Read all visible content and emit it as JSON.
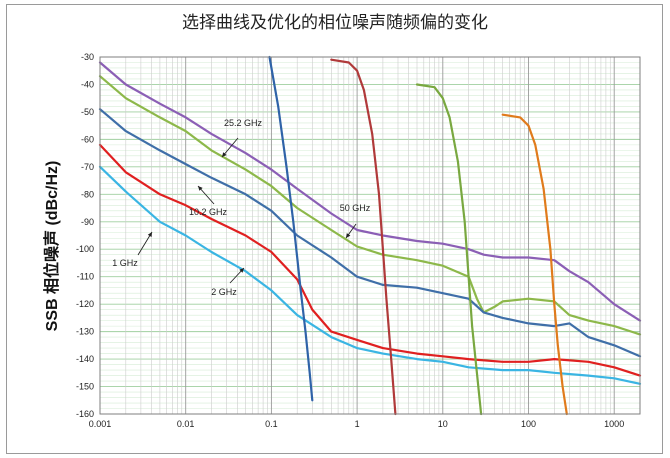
{
  "chart_data": {
    "type": "line",
    "title": "选择曲线及优化的相位噪声随频偏的变化",
    "ylabel": "SSB 相位噪声 (dBc/Hz)",
    "xlabel": "",
    "x_scale": "log",
    "xlim": [
      0.001,
      2000
    ],
    "ylim": [
      -160,
      -30
    ],
    "grid": true,
    "x_ticks": [
      "0.001",
      "0.01",
      "0.1",
      "1",
      "10",
      "100",
      "1000"
    ],
    "y_ticks": [
      "-30",
      "-40",
      "-50",
      "-60",
      "-70",
      "-80",
      "-90",
      "-100",
      "-110",
      "-120",
      "-130",
      "-140",
      "-150",
      "-160"
    ],
    "annotations": [
      {
        "label": "25.2 GHz"
      },
      {
        "label": "10.2 GHz"
      },
      {
        "label": "1 GHz"
      },
      {
        "label": "2 GHz"
      },
      {
        "label": "50 GHz"
      }
    ],
    "series": [
      {
        "color": "#8b5fb5",
        "x": [
          0.001,
          0.002,
          0.005,
          0.01,
          0.02,
          0.05,
          0.1,
          0.2,
          0.5,
          1,
          2,
          5,
          10,
          20,
          30,
          50,
          100,
          200,
          300,
          500,
          1000,
          2000
        ],
        "y": [
          -32,
          -40,
          -47,
          -52,
          -58,
          -65,
          -71,
          -78,
          -87,
          -93,
          -95,
          -97,
          -98,
          -100,
          -102,
          -103,
          -103,
          -104,
          -108,
          -112,
          -120,
          -126
        ]
      },
      {
        "color": "#8db84a",
        "x": [
          0.001,
          0.002,
          0.005,
          0.01,
          0.02,
          0.05,
          0.1,
          0.2,
          0.5,
          1,
          2,
          5,
          10,
          20,
          25,
          30,
          40,
          50,
          100,
          200,
          300,
          500,
          1000,
          2000
        ],
        "y": [
          -37,
          -45,
          -52,
          -57,
          -64,
          -71,
          -77,
          -85,
          -93,
          -99,
          -102,
          -104,
          -106,
          -110,
          -118,
          -123,
          -121,
          -119,
          -118,
          -119,
          -124,
          -126,
          -128,
          -131
        ]
      },
      {
        "color": "#3f6fa8",
        "x": [
          0.001,
          0.002,
          0.005,
          0.01,
          0.02,
          0.05,
          0.1,
          0.2,
          0.5,
          1,
          2,
          5,
          10,
          20,
          30,
          50,
          100,
          200,
          300,
          500,
          1000,
          2000
        ],
        "y": [
          -49,
          -57,
          -64,
          -69,
          -74,
          -80,
          -86,
          -95,
          -103,
          -110,
          -113,
          -114,
          -116,
          -118,
          -123,
          -125,
          -127,
          -128,
          -127,
          -132,
          -135,
          -139
        ]
      },
      {
        "color": "#e02020",
        "x": [
          0.001,
          0.002,
          0.005,
          0.01,
          0.02,
          0.05,
          0.1,
          0.2,
          0.3,
          0.5,
          1,
          2,
          5,
          10,
          20,
          50,
          100,
          200,
          500,
          1000,
          2000
        ],
        "y": [
          -62,
          -72,
          -80,
          -84,
          -89,
          -95,
          -101,
          -111,
          -122,
          -130,
          -133,
          -136,
          -138,
          -139,
          -140,
          -141,
          -141,
          -140,
          -141,
          -143,
          -146
        ]
      },
      {
        "color": "#3ab5e3",
        "x": [
          0.001,
          0.002,
          0.005,
          0.01,
          0.02,
          0.05,
          0.1,
          0.2,
          0.5,
          1,
          2,
          5,
          10,
          20,
          50,
          100,
          200,
          500,
          1000,
          2000
        ],
        "y": [
          -70,
          -79,
          -90,
          -95,
          -101,
          -108,
          -115,
          -124,
          -132,
          -136,
          -138,
          -140,
          -141,
          -143,
          -144,
          -144,
          -145,
          -146,
          -147,
          -149
        ]
      },
      {
        "color": "#2f63a8",
        "x": [
          0.095,
          0.12,
          0.15,
          0.18,
          0.2,
          0.22,
          0.25,
          0.28,
          0.3
        ],
        "y": [
          -30,
          -48,
          -70,
          -90,
          -103,
          -115,
          -130,
          -145,
          -155
        ]
      },
      {
        "color": "#b03a3a",
        "x": [
          0.5,
          0.8,
          1.0,
          1.2,
          1.5,
          1.8,
          2.0,
          2.2,
          2.5,
          2.8
        ],
        "y": [
          -31,
          -32,
          -35,
          -42,
          -58,
          -80,
          -100,
          -118,
          -140,
          -160
        ]
      },
      {
        "color": "#79a840",
        "x": [
          5,
          8,
          10,
          12,
          15,
          18,
          20,
          22,
          25,
          28
        ],
        "y": [
          -40,
          -41,
          -45,
          -52,
          -68,
          -90,
          -110,
          -128,
          -145,
          -160
        ]
      },
      {
        "color": "#e07b1c",
        "x": [
          50,
          80,
          100,
          120,
          150,
          180,
          200,
          220,
          250,
          280
        ],
        "y": [
          -51,
          -52,
          -55,
          -62,
          -78,
          -100,
          -120,
          -135,
          -150,
          -160
        ]
      }
    ]
  }
}
